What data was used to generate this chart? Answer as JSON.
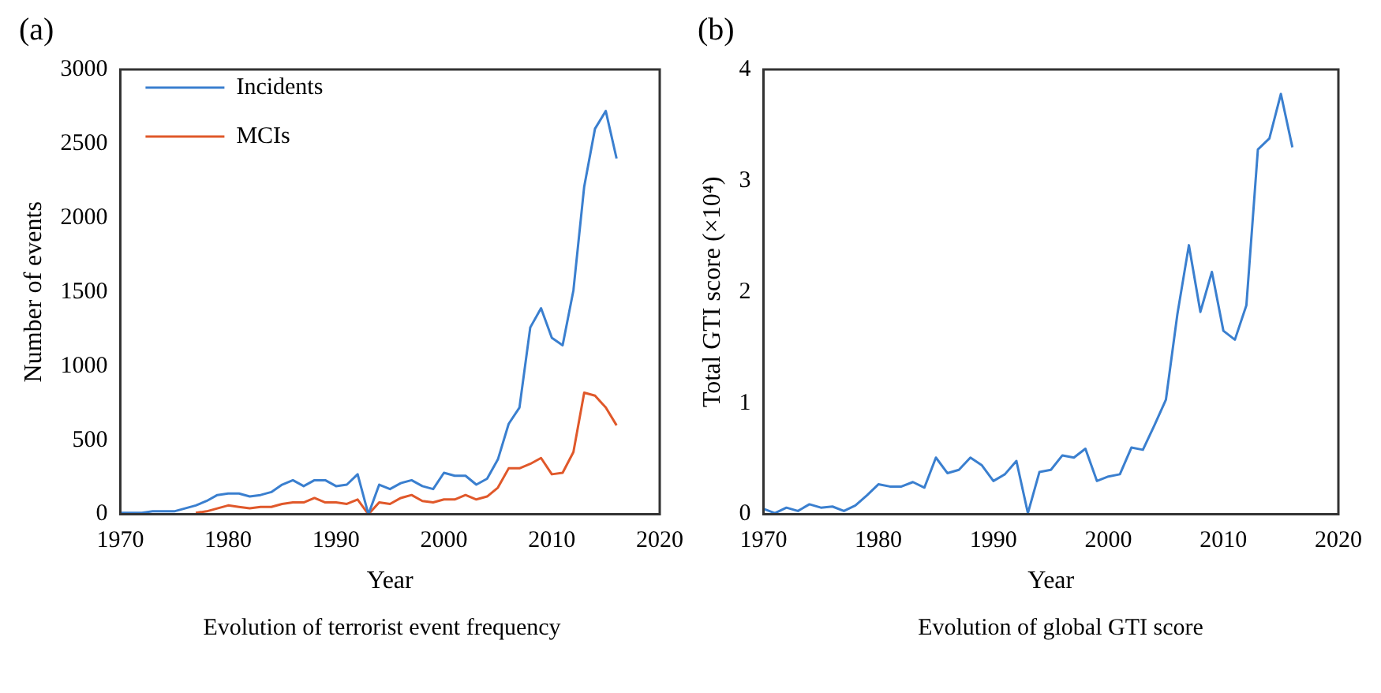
{
  "chart_data": [
    {
      "type": "line",
      "title": "(a)",
      "xlabel": "Year",
      "ylabel": "Number of events",
      "annotations": [
        "Evolution of terrorist event frequency"
      ],
      "x": [
        1970,
        1971,
        1972,
        1973,
        1974,
        1975,
        1976,
        1977,
        1978,
        1979,
        1980,
        1981,
        1982,
        1983,
        1984,
        1985,
        1986,
        1987,
        1988,
        1989,
        1990,
        1991,
        1992,
        1993,
        1994,
        1995,
        1996,
        1997,
        1998,
        1999,
        2000,
        2001,
        2002,
        2003,
        2004,
        2005,
        2006,
        2007,
        2008,
        2009,
        2010,
        2011,
        2012,
        2013,
        2014,
        2015,
        2016
      ],
      "series": [
        {
          "name": "Incidents",
          "color": "#3a7fcf",
          "values": [
            10,
            10,
            10,
            20,
            20,
            20,
            40,
            60,
            90,
            130,
            140,
            140,
            120,
            130,
            150,
            200,
            230,
            190,
            230,
            230,
            190,
            200,
            270,
            0,
            200,
            170,
            210,
            230,
            190,
            170,
            280,
            260,
            260,
            200,
            240,
            370,
            610,
            720,
            1260,
            1390,
            1190,
            1140,
            1510,
            2210,
            2600,
            2720,
            2400
          ]
        },
        {
          "name": "MCIs",
          "color": "#e0582a",
          "values": [
            null,
            null,
            null,
            null,
            null,
            null,
            null,
            10,
            20,
            40,
            60,
            50,
            40,
            50,
            50,
            70,
            80,
            80,
            110,
            80,
            80,
            70,
            100,
            0,
            80,
            70,
            110,
            130,
            90,
            80,
            100,
            100,
            130,
            100,
            120,
            180,
            310,
            310,
            340,
            380,
            270,
            280,
            420,
            820,
            800,
            720,
            600
          ]
        }
      ],
      "xlim": [
        1970,
        2020
      ],
      "xticks": [
        1970,
        1980,
        1990,
        2000,
        2010,
        2020
      ],
      "ylim": [
        0,
        3000
      ],
      "yticks": [
        0,
        500,
        1000,
        1500,
        2000,
        2500,
        3000
      ],
      "grid": false,
      "legend": "top left"
    },
    {
      "type": "line",
      "title": "(b)",
      "xlabel": "Year",
      "ylabel": "Total GTI score (×10⁴)",
      "annotations": [
        "Evolution of global GTI score"
      ],
      "x": [
        1970,
        1971,
        1972,
        1973,
        1974,
        1975,
        1976,
        1977,
        1978,
        1979,
        1980,
        1981,
        1982,
        1983,
        1984,
        1985,
        1986,
        1987,
        1988,
        1989,
        1990,
        1991,
        1992,
        1993,
        1994,
        1995,
        1996,
        1997,
        1998,
        1999,
        2000,
        2001,
        2002,
        2003,
        2004,
        2005,
        2006,
        2007,
        2008,
        2009,
        2010,
        2011,
        2012,
        2013,
        2014,
        2015,
        2016
      ],
      "series": [
        {
          "color": "#3a7fcf",
          "values": [
            0.05,
            0.01,
            0.06,
            0.03,
            0.09,
            0.06,
            0.07,
            0.03,
            0.08,
            0.17,
            0.27,
            0.25,
            0.25,
            0.29,
            0.24,
            0.51,
            0.37,
            0.4,
            0.51,
            0.44,
            0.3,
            0.36,
            0.48,
            0.01,
            0.38,
            0.4,
            0.53,
            0.51,
            0.59,
            0.3,
            0.34,
            0.36,
            0.6,
            0.58,
            0.8,
            1.03,
            1.8,
            2.42,
            1.82,
            2.18,
            1.65,
            1.57,
            1.88,
            3.28,
            3.38,
            3.78,
            3.3
          ]
        }
      ],
      "xlim": [
        1970,
        2020
      ],
      "xticks": [
        1970,
        1980,
        1990,
        2000,
        2010,
        2020
      ],
      "ylim": [
        0,
        4
      ],
      "yticks": [
        0,
        1,
        2,
        3,
        4
      ],
      "grid": false,
      "legend": false
    }
  ]
}
